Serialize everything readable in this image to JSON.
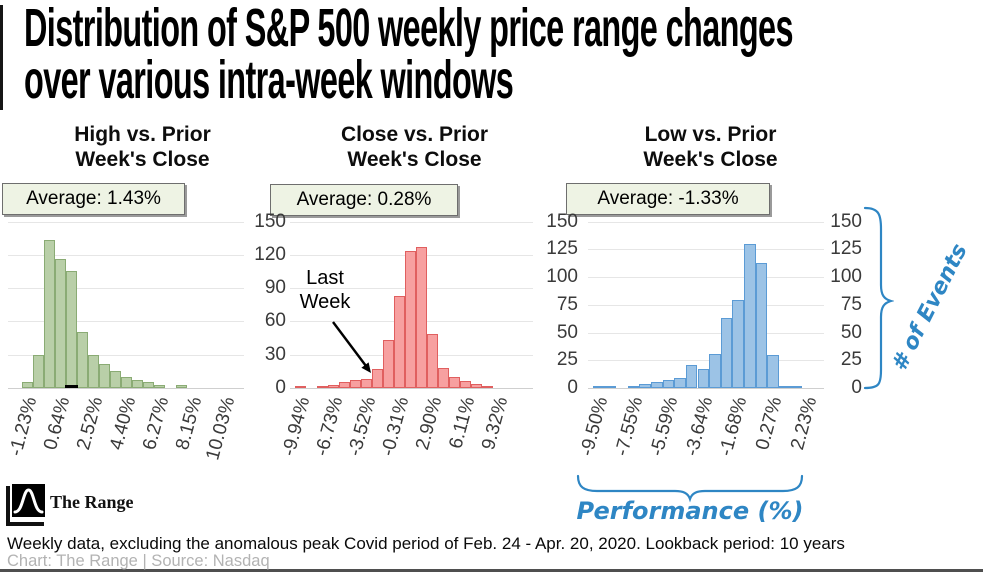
{
  "header": {
    "title_line1": "Distribution of S&P 500 weekly price range changes",
    "title_line2": "over various intra-week windows"
  },
  "axes": {
    "y_axis_label": "# of Events",
    "x_axis_label": "Performance (%)",
    "ylim": [
      0,
      150
    ],
    "right_ticks": [
      150,
      125,
      100,
      75,
      50,
      25,
      0
    ],
    "accent_color": "#2e86c4"
  },
  "chart_data": [
    {
      "type": "bar",
      "title_line1": "High vs. Prior",
      "title_line2": "Week's Close",
      "average": "Average: 1.43%",
      "fill": "#b9cfa8",
      "stroke": "#8aab74",
      "grid_step": 30,
      "y_ticks": [],
      "x_ticks": [
        "-1.23%",
        "0.64%",
        "2.52%",
        "4.40%",
        "6.27%",
        "8.15%",
        "10.03%"
      ],
      "values": [
        5,
        30,
        133,
        116,
        105,
        50,
        30,
        22,
        15,
        10,
        7,
        5,
        3,
        0,
        3,
        0,
        0,
        0
      ],
      "marker_bin": 4
    },
    {
      "type": "bar",
      "title_line1": "Close vs. Prior",
      "title_line2": "Week's Close",
      "average": "Average: 0.28%",
      "fill": "#f7a0a0",
      "stroke": "#e05f5f",
      "grid_step": 30,
      "y_ticks": [
        150,
        120,
        90,
        60,
        30,
        0
      ],
      "x_ticks": [
        "-9.94%",
        "-6.73%",
        "-3.52%",
        "-0.31%",
        "2.90%",
        "6.11%",
        "9.32%"
      ],
      "values": [
        2,
        0,
        2,
        3,
        5,
        7,
        8,
        17,
        43,
        83,
        123,
        127,
        49,
        18,
        10,
        6,
        4,
        2
      ],
      "annotation": {
        "line1": "Last",
        "line2": "Week",
        "target_bin": 7
      }
    },
    {
      "type": "bar",
      "title_line1": "Low vs. Prior",
      "title_line2": "Week's Close",
      "average": "Average: -1.33%",
      "fill": "#9cc3e6",
      "stroke": "#5b9bd5",
      "grid_step": 25,
      "y_ticks": [
        150,
        125,
        100,
        75,
        50,
        25,
        0
      ],
      "x_ticks": [
        "-9.50%",
        "-7.55%",
        "-5.59%",
        "-3.64%",
        "-1.68%",
        "0.27%",
        "2.23%"
      ],
      "values": [
        2,
        2,
        0,
        2,
        4,
        5,
        7,
        9,
        21,
        17,
        31,
        63,
        79,
        130,
        113,
        30,
        2,
        2
      ]
    }
  ],
  "footer": {
    "logo_text": "The Range",
    "note": "Weekly data, excluding the anomalous peak Covid period of Feb. 24 - Apr. 20, 2020. Lookback period: 10 years",
    "credit": "Chart: The Range | Source: Nasdaq"
  }
}
